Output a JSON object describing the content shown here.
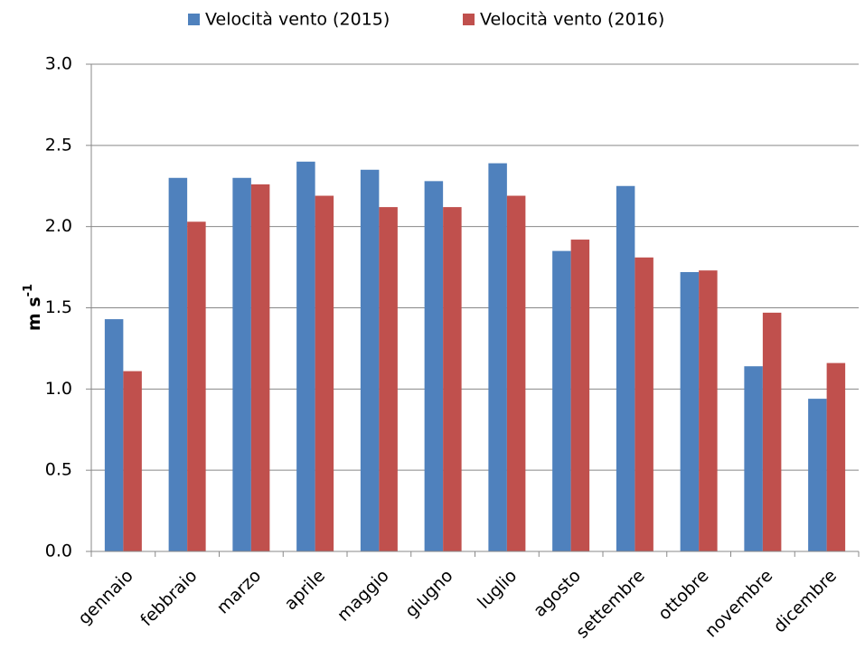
{
  "chart_data": {
    "type": "bar",
    "categories": [
      "gennaio",
      "febbraio",
      "marzo",
      "aprile",
      "maggio",
      "giugno",
      "luglio",
      "agosto",
      "settembre",
      "ottobre",
      "novembre",
      "dicembre"
    ],
    "series": [
      {
        "name": "Velocità vento (2015)",
        "color": "#4f81bd",
        "values": [
          1.43,
          2.3,
          2.3,
          2.4,
          2.35,
          2.28,
          2.39,
          1.85,
          2.25,
          1.72,
          1.14,
          0.94
        ]
      },
      {
        "name": "Velocità vento (2016)",
        "color": "#c0504d",
        "values": [
          1.11,
          2.03,
          2.26,
          2.19,
          2.12,
          2.12,
          2.19,
          1.92,
          1.81,
          1.73,
          1.47,
          1.16
        ]
      }
    ],
    "y_label": {
      "text": "m s",
      "superscript": "-1"
    },
    "ylim": [
      0,
      3
    ],
    "yticks": [
      {
        "value": 0,
        "label": "0.0"
      },
      {
        "value": 0.5,
        "label": "0.5"
      },
      {
        "value": 1,
        "label": "1.0"
      },
      {
        "value": 1.5,
        "label": "1.5"
      },
      {
        "value": 2,
        "label": "2.0"
      },
      {
        "value": 2.5,
        "label": "2.5"
      },
      {
        "value": 3,
        "label": "3.0"
      }
    ],
    "grid": true,
    "legend": "top"
  }
}
